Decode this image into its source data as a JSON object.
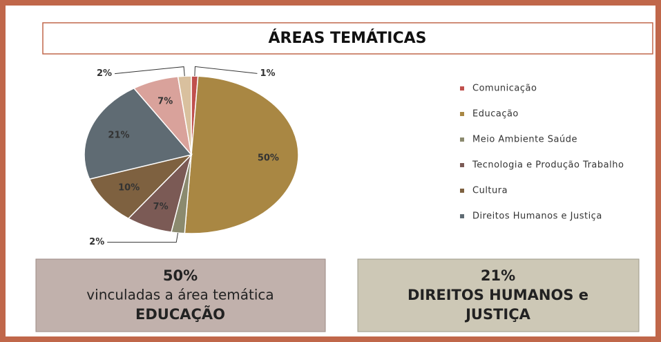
{
  "chart_data": {
    "type": "pie",
    "title": "ÁREAS TEMÁTICAS",
    "categories": [
      "Comunicação",
      "Educação",
      "Meio Ambiente Saúde",
      "Tecnologia e Produção Trabalho",
      "Cultura",
      "Direitos Humanos e Justiça",
      null,
      null
    ],
    "values": [
      1,
      50,
      2,
      7,
      10,
      21,
      7,
      2
    ],
    "value_labels": [
      "1%",
      "50%",
      "2%",
      "7%",
      "10%",
      "21%",
      "7%",
      "2%"
    ],
    "colors": [
      "#c0504d",
      "#a98743",
      "#8b8a6e",
      "#7b5a55",
      "#7e6140",
      "#5f6b73",
      "#d9a29b",
      "#d9c09e"
    ],
    "legend": "right"
  },
  "callouts": [
    {
      "lines": [
        "50%",
        "vinculadas a área temática",
        "EDUCAÇÃO"
      ]
    },
    {
      "lines": [
        "21%",
        "DIREITOS HUMANOS e",
        "JUSTIÇA"
      ]
    }
  ]
}
